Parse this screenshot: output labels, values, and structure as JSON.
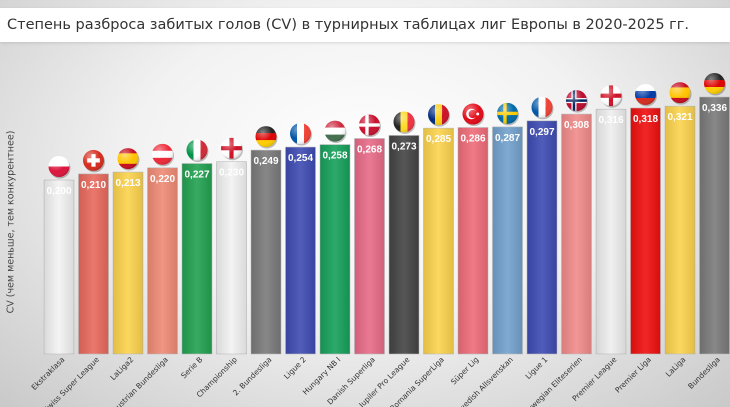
{
  "chart_data": {
    "type": "bar",
    "title": "Степень разброса забитых голов (CV) в турнирных таблицах лиг Европы в 2020-2025 гг.",
    "xlabel": "",
    "ylabel": "CV (чем меньше, тем конкурентнее)",
    "ylim": [
      0.0,
      0.34
    ],
    "grid": false,
    "legend": "none",
    "categories": [
      "Ekstraklasa",
      "Swiss Super League",
      "LaLiga2",
      "Austrian Bundesliga",
      "Serie B",
      "Championship",
      "2. Bundesliga",
      "Ligue 2",
      "Hungary NB I",
      "Danish Superliga",
      "Jupiler Pro League",
      "Romania SuperLiga",
      "Süper Lig",
      "Swedish Allsvenskan",
      "Ligue 1",
      "Norwegian Eliteserien",
      "Premier League",
      "Premier Liga",
      "LaLiga",
      "Bundesliga"
    ],
    "values": [
      0.2,
      0.21,
      0.213,
      0.22,
      0.227,
      0.23,
      0.249,
      0.254,
      0.258,
      0.268,
      0.273,
      0.285,
      0.286,
      0.287,
      0.297,
      0.308,
      0.316,
      0.318,
      0.321,
      0.336
    ],
    "labels": [
      "0,200",
      "0,210",
      "0,213",
      "0,220",
      "0,227",
      "0,230",
      "0,249",
      "0,254",
      "0,258",
      "0,268",
      "0,273",
      "0,285",
      "0,286",
      "0,287",
      "0,297",
      "0,308",
      "0,316",
      "0,318",
      "0,321",
      "0,336"
    ],
    "bar_colors": [
      "#f2f2f2",
      "#e8695c",
      "#fcd34d",
      "#ef8a75",
      "#22a150",
      "#f2f2f2",
      "#7a7a7a",
      "#3e4bb2",
      "#16a05a",
      "#e86a88",
      "#444444",
      "#fcd34d",
      "#ee6c78",
      "#72a1cc",
      "#3e4bb2",
      "#f08a8a",
      "#eeeeee",
      "#ef0f0f",
      "#fcd34d",
      "#7a7a7a"
    ],
    "flags": [
      "poland-flag-icon",
      "switzerland-flag-icon",
      "spain-flag-icon",
      "austria-flag-icon",
      "italy-flag-icon",
      "england-flag-icon",
      "germany-flag-icon",
      "france-flag-icon",
      "hungary-flag-icon",
      "denmark-flag-icon",
      "belgium-flag-icon",
      "romania-flag-icon",
      "turkey-flag-icon",
      "sweden-flag-icon",
      "france-flag-icon",
      "norway-flag-icon",
      "england-flag-icon",
      "russia-flag-icon",
      "spain-flag-icon",
      "germany-flag-icon"
    ]
  }
}
